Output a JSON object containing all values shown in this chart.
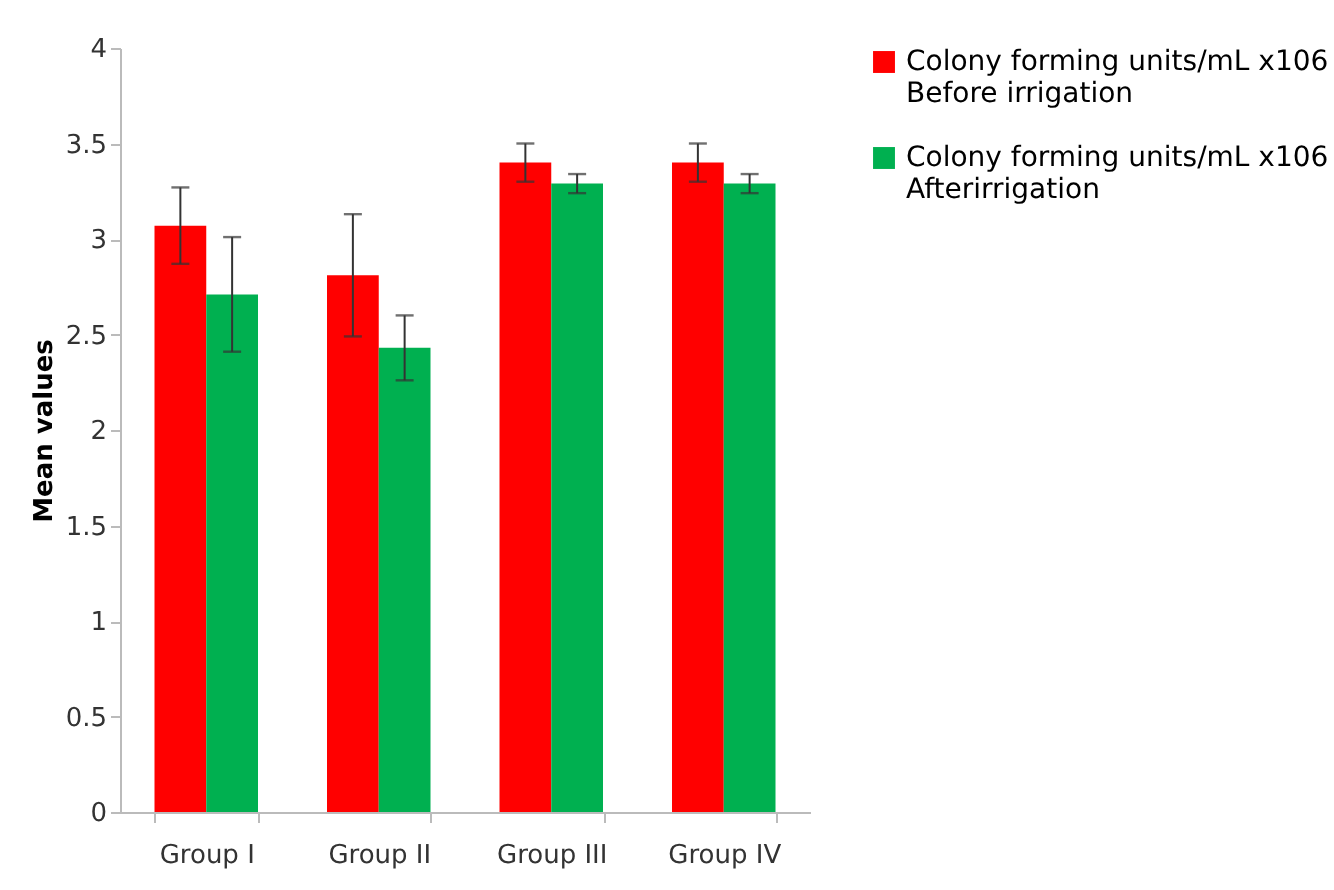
{
  "chart_data": {
    "type": "bar",
    "ylabel": "Mean values",
    "categories": [
      "Group I",
      "Group II",
      "Group III",
      "Group IV"
    ],
    "series": [
      {
        "name": "Colony forming units/mL x106 Before irrigation",
        "color": "#ff0000",
        "values": [
          3.07,
          2.81,
          3.4,
          3.4
        ],
        "errors": [
          0.2,
          0.32,
          0.1,
          0.1
        ]
      },
      {
        "name": "Colony forming units/mL x106 Afterirrigation",
        "color": "#00b050",
        "values": [
          2.71,
          2.43,
          3.29,
          3.29
        ],
        "errors": [
          0.3,
          0.17,
          0.05,
          0.05
        ]
      }
    ],
    "ylim": [
      0,
      4
    ],
    "yticks": [
      0,
      0.5,
      1,
      1.5,
      2,
      2.5,
      3,
      3.5,
      4
    ],
    "legend": "right"
  }
}
